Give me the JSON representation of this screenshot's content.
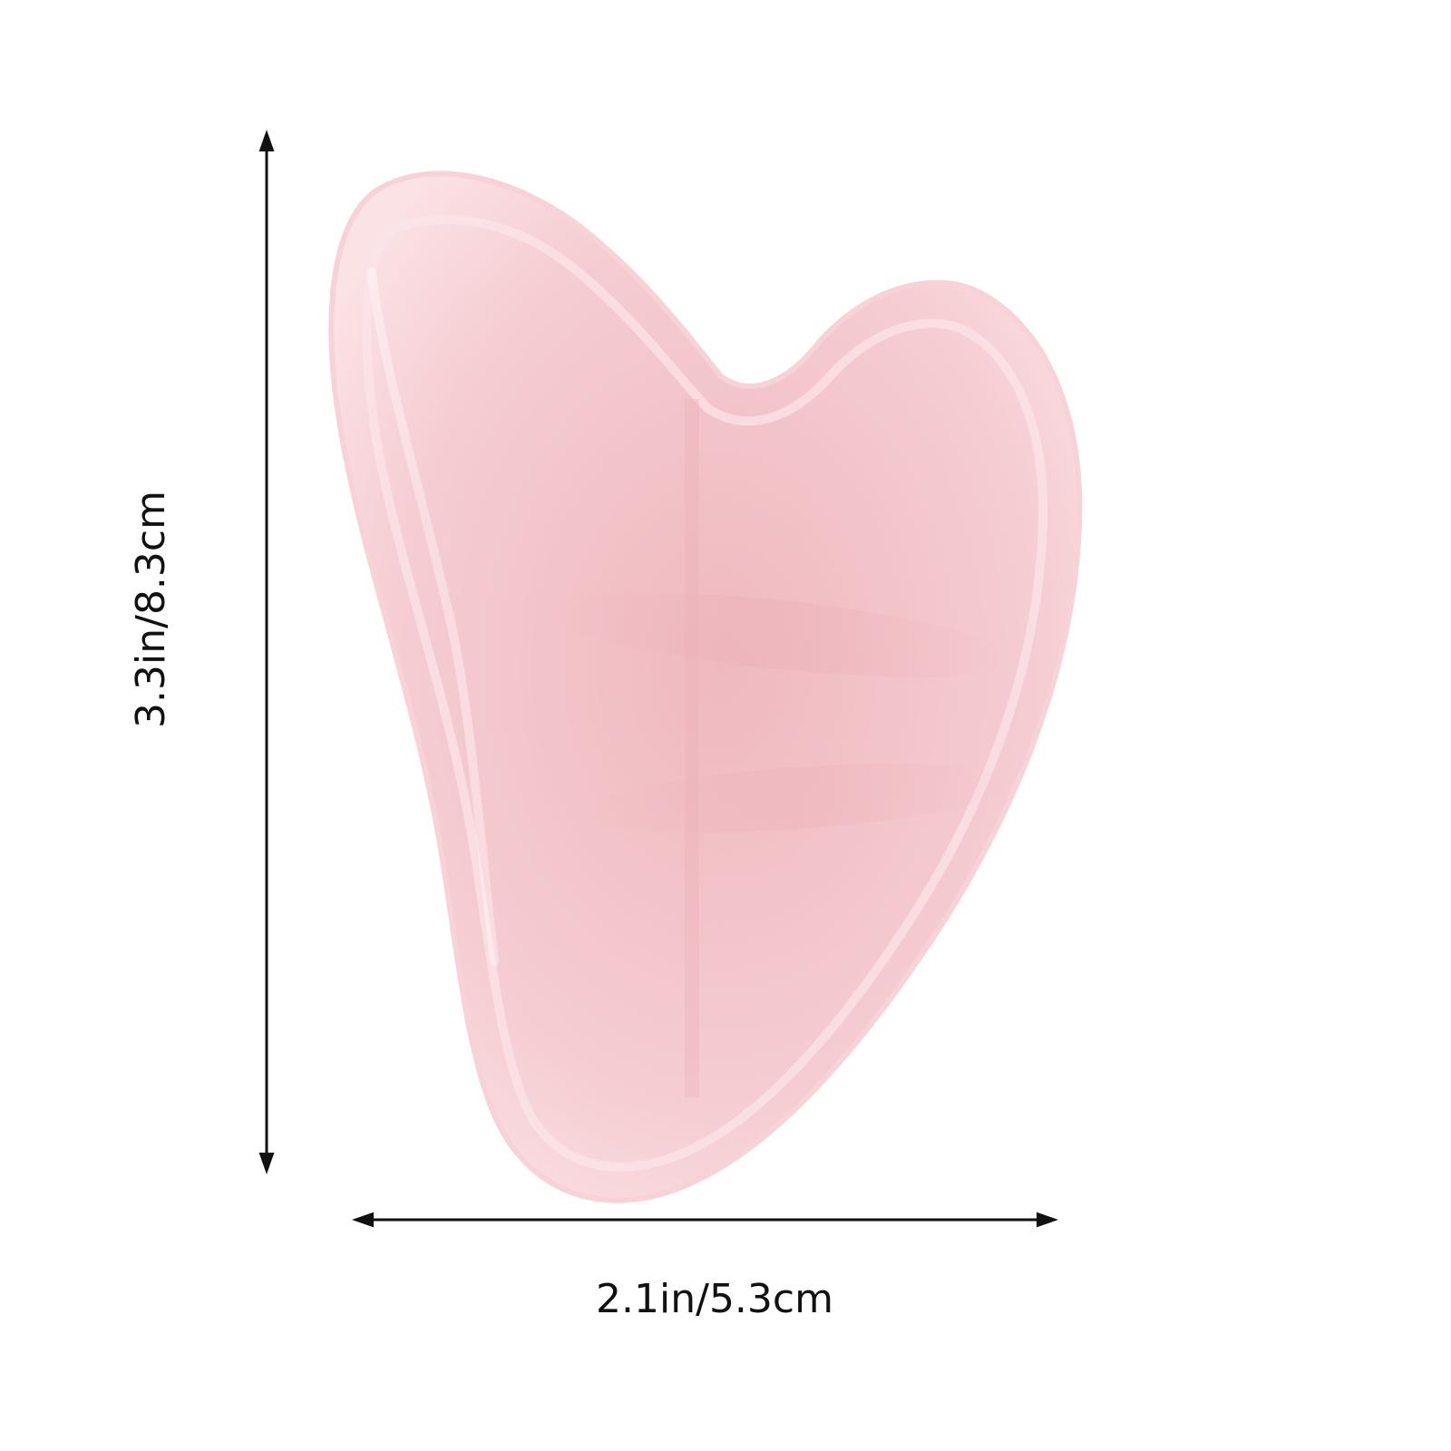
{
  "product": {
    "colors": {
      "stone_base": "#f5cdd2",
      "stone_core": "#efb9bf",
      "stone_edge": "#fbe2e5",
      "arrow": "#111111",
      "background": "#ffffff"
    }
  },
  "dimensions": {
    "height_label": "3.3in/8.3cm",
    "width_label": "2.1in/5.3cm"
  }
}
